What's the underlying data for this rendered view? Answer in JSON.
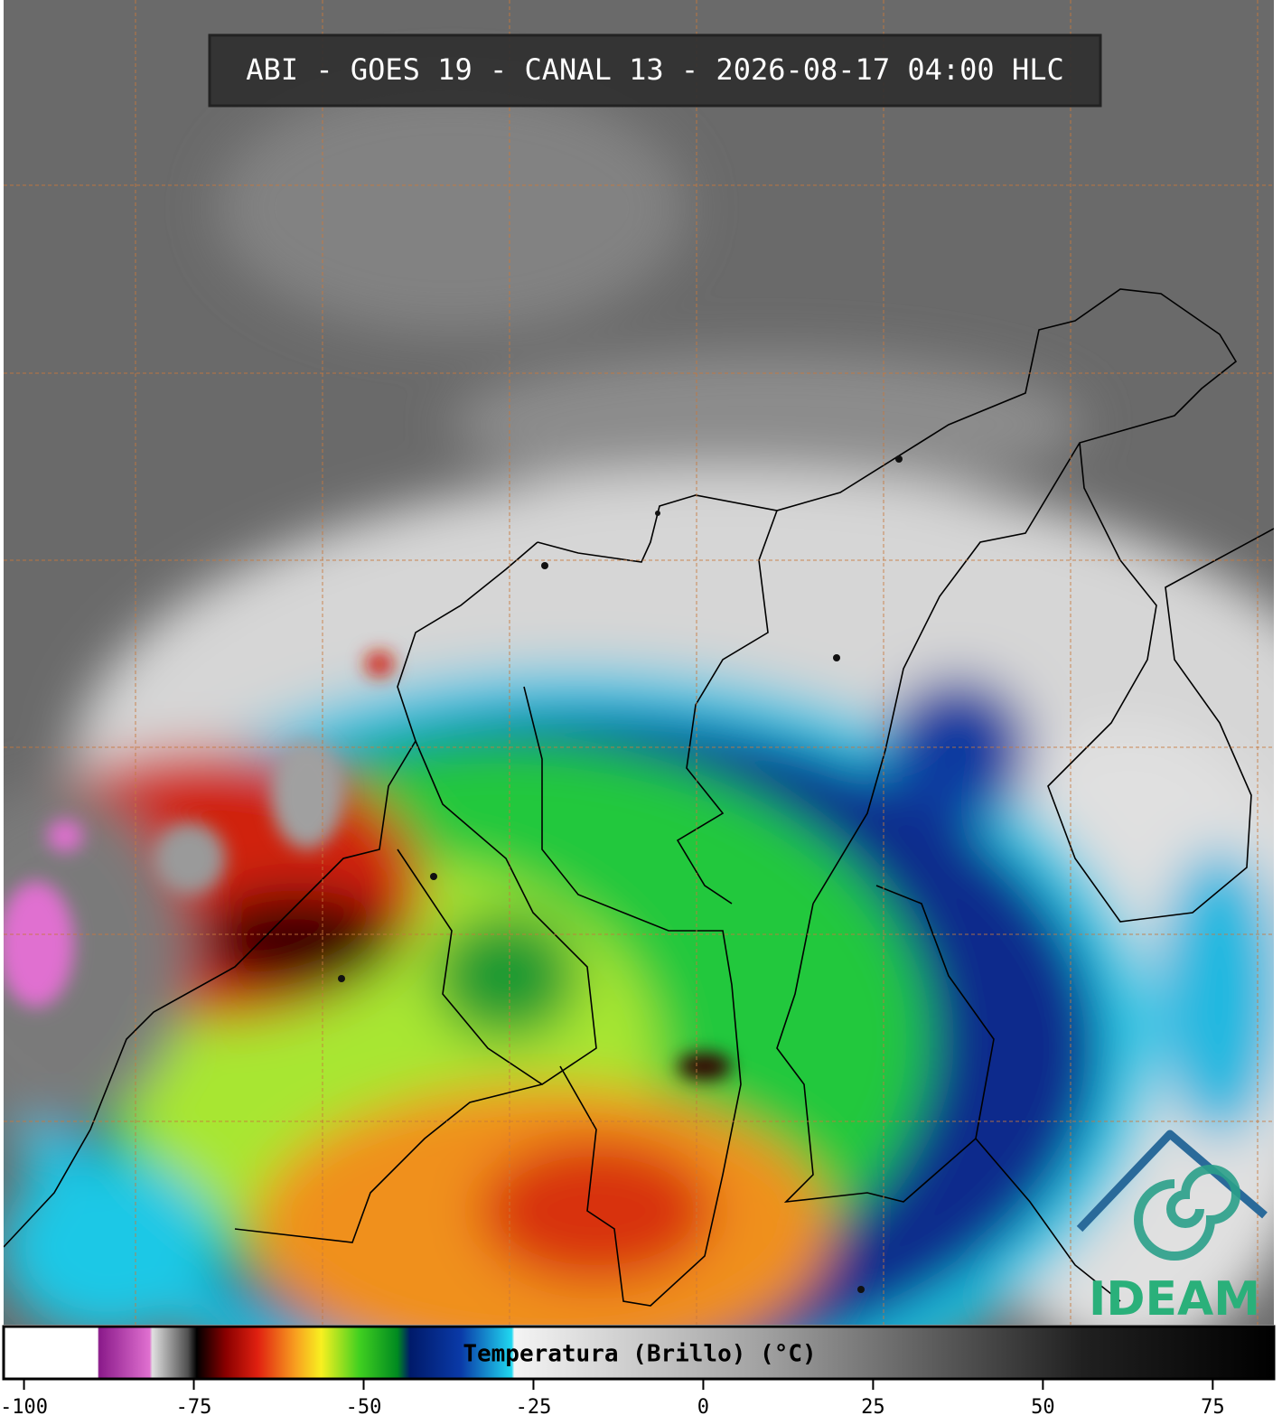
{
  "title": "ABI - GOES 19 - CANAL 13 - 2026-08-17 04:00 HLC",
  "colorbar": {
    "label": "Temperatura (Brillo) (°C)",
    "lim": [
      -103,
      84
    ],
    "ticks": [
      -100,
      -75,
      -50,
      -25,
      0,
      25,
      50,
      75
    ]
  },
  "logo": "IDEAM"
}
